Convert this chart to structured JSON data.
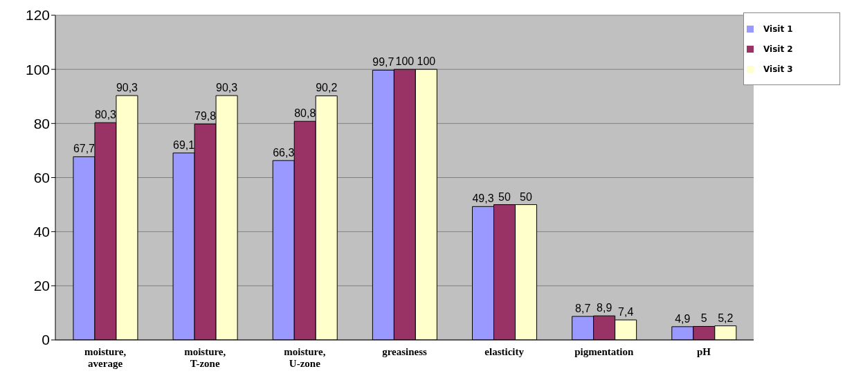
{
  "chart_data": {
    "type": "bar",
    "categories": [
      "moisture, average",
      "moisture, T-zone",
      "moisture, U-zone",
      "greasiness",
      "elasticity",
      "pigmentation",
      "pH"
    ],
    "series": [
      {
        "name": "Visit 1",
        "color": "#9999ff",
        "values": [
          67.7,
          69.1,
          66.3,
          99.7,
          49.3,
          8.7,
          4.9
        ],
        "value_labels": [
          "67,7",
          "69,1",
          "66,3",
          "99,7",
          "49,3",
          "8,7",
          "4,9"
        ]
      },
      {
        "name": "Visit 2",
        "color": "#993366",
        "values": [
          80.3,
          79.8,
          80.8,
          100,
          50,
          8.9,
          5
        ],
        "value_labels": [
          "80,3",
          "79,8",
          "80,8",
          "100",
          "50",
          "8,9",
          "5"
        ]
      },
      {
        "name": "Visit 3",
        "color": "#ffffcc",
        "values": [
          90.3,
          90.3,
          90.2,
          100,
          50,
          7.4,
          5.2
        ],
        "value_labels": [
          "90,3",
          "90,3",
          "90,2",
          "100",
          "50",
          "7,4",
          "5,2"
        ]
      }
    ],
    "ylim": [
      0,
      120
    ],
    "yticks": [
      0,
      20,
      40,
      60,
      80,
      100,
      120
    ],
    "grid": "y",
    "legend": "top right"
  }
}
